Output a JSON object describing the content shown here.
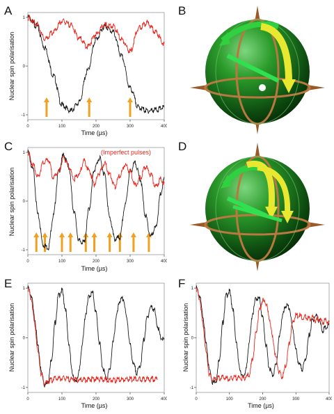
{
  "panels": {
    "A": {
      "letter": "A"
    },
    "B": {
      "letter": "B"
    },
    "C": {
      "letter": "C"
    },
    "D": {
      "letter": "D"
    },
    "E": {
      "letter": "E"
    },
    "F": {
      "letter": "F"
    }
  },
  "colors": {
    "black_series": "#1a1a1a",
    "red_series": "#e8261c",
    "arrow": "#f2a020",
    "sphere": "#1e8a1e",
    "ring": "#b87840",
    "yellow_arrow": "#e8e830",
    "green_arrow": "#30e050"
  },
  "annotation_c": "(Imperfect pulses)",
  "chart_data": [
    {
      "id": "A",
      "type": "line",
      "xlabel": "Time (µs)",
      "ylabel": "Nuclear spin polarisation",
      "xlim": [
        0,
        400
      ],
      "ylim": [
        -1.1,
        1.1
      ],
      "xticks": [
        0,
        100,
        200,
        300,
        400
      ],
      "yticks": [
        -1,
        0,
        1
      ],
      "series": [
        {
          "color": "#1a1a1a",
          "x": [
            0,
            25,
            50,
            75,
            100,
            125,
            150,
            175,
            200,
            225,
            250,
            275,
            300,
            325,
            350,
            375,
            400
          ],
          "y": [
            1.0,
            0.83,
            0.38,
            -0.2,
            -0.8,
            -0.92,
            -0.75,
            -0.1,
            0.55,
            0.82,
            0.7,
            0.2,
            -0.45,
            -0.85,
            -0.92,
            -0.9,
            -0.85
          ]
        },
        {
          "color": "#e8261c",
          "x": [
            0,
            25,
            50,
            75,
            100,
            125,
            150,
            175,
            200,
            225,
            250,
            275,
            300,
            325,
            350,
            375,
            400
          ],
          "y": [
            1.0,
            0.88,
            0.55,
            0.7,
            0.92,
            0.85,
            0.58,
            0.4,
            0.65,
            0.85,
            0.82,
            0.55,
            0.3,
            0.78,
            0.88,
            0.7,
            0.45
          ]
        }
      ],
      "arrows_x": [
        55,
        180,
        300
      ]
    },
    {
      "id": "C",
      "type": "line",
      "xlabel": "Time (µs)",
      "ylabel": "Nuclear spin polarisation",
      "xlim": [
        0,
        400
      ],
      "ylim": [
        -1.1,
        1.1
      ],
      "xticks": [
        0,
        100,
        200,
        300,
        400
      ],
      "yticks": [
        -1,
        0,
        1
      ],
      "series": [
        {
          "color": "#1a1a1a",
          "x": [
            0,
            15,
            30,
            45,
            60,
            75,
            90,
            105,
            120,
            135,
            150,
            165,
            180,
            195,
            210,
            225,
            240,
            255,
            270,
            285,
            300,
            315,
            330,
            345,
            360,
            375,
            390,
            400
          ],
          "y": [
            1.0,
            0.65,
            -0.3,
            -0.9,
            -0.95,
            -0.3,
            0.6,
            0.95,
            0.7,
            -0.2,
            -0.82,
            -0.85,
            -0.15,
            0.65,
            0.88,
            0.55,
            -0.35,
            -0.78,
            -0.75,
            -0.1,
            0.6,
            0.78,
            0.45,
            -0.3,
            -0.72,
            -0.55,
            0.15,
            0.45
          ]
        },
        {
          "color": "#e8261c",
          "x": [
            0,
            15,
            30,
            45,
            60,
            75,
            90,
            105,
            120,
            135,
            150,
            165,
            180,
            195,
            210,
            225,
            240,
            255,
            270,
            285,
            300,
            315,
            330,
            345,
            360,
            375,
            390,
            400
          ],
          "y": [
            1.0,
            0.75,
            0.5,
            0.78,
            0.85,
            0.48,
            0.6,
            0.88,
            0.72,
            0.45,
            0.55,
            0.82,
            0.62,
            0.35,
            0.58,
            0.78,
            0.55,
            0.3,
            0.52,
            0.75,
            0.6,
            0.32,
            0.48,
            0.7,
            0.55,
            0.3,
            0.45,
            0.35
          ]
        }
      ],
      "arrows_x": [
        25,
        50,
        100,
        125,
        170,
        195,
        240,
        270,
        310,
        355
      ]
    },
    {
      "id": "E",
      "type": "line",
      "xlabel": "Time (µs)",
      "ylabel": "Nuclear spin polarisation",
      "xlim": [
        0,
        400
      ],
      "ylim": [
        -1.1,
        1.1
      ],
      "xticks": [
        0,
        100,
        200,
        300,
        400
      ],
      "yticks": [
        -1,
        0,
        1
      ],
      "series": [
        {
          "color": "#1a1a1a",
          "x": [
            0,
            10,
            20,
            30,
            40,
            50,
            60,
            70,
            80,
            90,
            100,
            110,
            120,
            130,
            140,
            150,
            160,
            170,
            180,
            190,
            200,
            210,
            220,
            230,
            240,
            250,
            260,
            270,
            280,
            290,
            300,
            310,
            320,
            330,
            340,
            350,
            360,
            370,
            380,
            390,
            400
          ],
          "y": [
            1.0,
            0.85,
            0.4,
            -0.2,
            -0.7,
            -0.95,
            -0.85,
            -0.4,
            0.3,
            0.85,
            0.95,
            0.6,
            -0.1,
            -0.7,
            -0.9,
            -0.7,
            -0.1,
            0.5,
            0.85,
            0.9,
            0.5,
            -0.1,
            -0.6,
            -0.82,
            -0.65,
            -0.1,
            0.45,
            0.75,
            0.78,
            0.4,
            -0.15,
            -0.55,
            -0.7,
            -0.55,
            -0.05,
            0.4,
            0.62,
            0.58,
            0.25,
            0.0,
            -0.05
          ]
        },
        {
          "color": "#e8261c",
          "x": [
            0,
            10,
            20,
            30,
            40,
            50,
            60,
            70,
            80,
            100,
            150,
            200,
            250,
            300,
            350,
            380
          ],
          "y": [
            1.0,
            0.8,
            0.3,
            -0.3,
            -0.75,
            -0.93,
            -0.88,
            -0.85,
            -0.82,
            -0.82,
            -0.85,
            -0.83,
            -0.85,
            -0.83,
            -0.84,
            -0.83
          ]
        }
      ]
    },
    {
      "id": "F",
      "type": "line",
      "xlabel": "Time (µs)",
      "ylabel": "Nuclear spin polarisation",
      "xlim": [
        0,
        400
      ],
      "ylim": [
        -1.1,
        1.1
      ],
      "xticks": [
        0,
        100,
        200,
        300,
        400
      ],
      "yticks": [
        -1,
        0,
        1
      ],
      "series": [
        {
          "color": "#1a1a1a",
          "x": [
            0,
            10,
            20,
            30,
            40,
            50,
            60,
            70,
            80,
            90,
            100,
            110,
            120,
            130,
            140,
            150,
            160,
            170,
            180,
            190,
            200,
            210,
            220,
            230,
            240,
            250,
            260,
            270,
            280,
            290,
            300,
            310,
            320,
            330,
            340,
            350,
            360,
            370,
            380,
            390,
            400
          ],
          "y": [
            1.0,
            0.85,
            0.45,
            -0.15,
            -0.65,
            -0.9,
            -0.85,
            -0.4,
            0.3,
            0.85,
            0.93,
            0.6,
            -0.05,
            -0.6,
            -0.8,
            -0.65,
            -0.05,
            0.5,
            0.8,
            0.78,
            0.4,
            -0.15,
            -0.6,
            -0.75,
            -0.55,
            0.0,
            0.45,
            0.65,
            0.6,
            0.2,
            -0.25,
            -0.55,
            -0.62,
            -0.4,
            0.05,
            0.35,
            0.45,
            0.35,
            0.15,
            0.2,
            0.25
          ]
        },
        {
          "color": "#e8261c",
          "x": [
            0,
            10,
            20,
            30,
            40,
            50,
            60,
            80,
            100,
            120,
            140,
            160,
            170,
            180,
            190,
            200,
            210,
            220,
            230,
            240,
            250,
            260,
            270,
            280,
            290,
            300,
            310,
            320,
            330,
            340,
            350,
            360,
            370,
            380,
            390,
            400
          ],
          "y": [
            1.0,
            0.8,
            0.3,
            -0.3,
            -0.75,
            -0.85,
            -0.82,
            -0.8,
            -0.83,
            -0.8,
            -0.82,
            -0.75,
            -0.4,
            0.1,
            0.55,
            0.75,
            0.7,
            0.4,
            0.0,
            -0.4,
            -0.7,
            -0.78,
            -0.55,
            -0.1,
            0.3,
            0.45,
            0.45,
            0.4,
            0.42,
            0.38,
            0.4,
            0.35,
            0.38,
            0.32,
            0.35,
            0.3
          ]
        }
      ]
    }
  ]
}
